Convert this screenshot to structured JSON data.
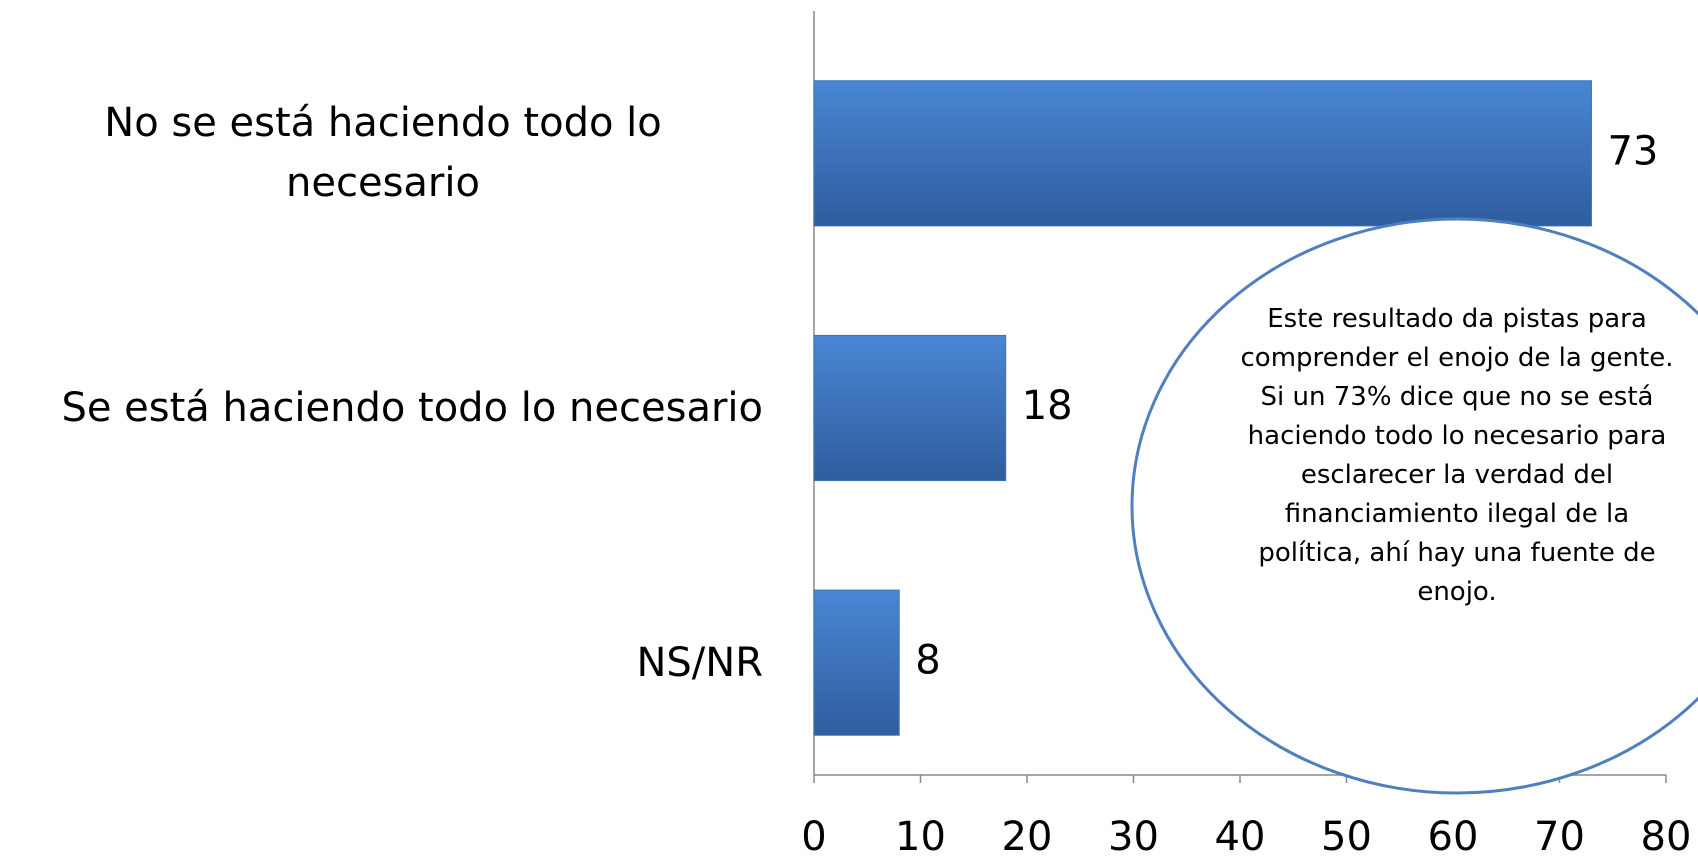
{
  "chart_data": {
    "type": "bar",
    "orientation": "horizontal",
    "categories": [
      "No se está haciendo todo lo necesario",
      "Se está haciendo todo lo necesario",
      "NS/NR"
    ],
    "values": [
      73,
      18,
      8
    ],
    "color": "#3c72bd",
    "xlim": [
      0,
      80
    ],
    "xticks": [
      0,
      10,
      20,
      30,
      40,
      50,
      60,
      70,
      80
    ],
    "annotation": "Este resultado da pistas para comprender el enojo de la gente. Si un 73% dice que no se está haciendo todo lo necesario para esclarecer la verdad del financiamiento ilegal de la política, ahí hay una fuente de enojo."
  }
}
